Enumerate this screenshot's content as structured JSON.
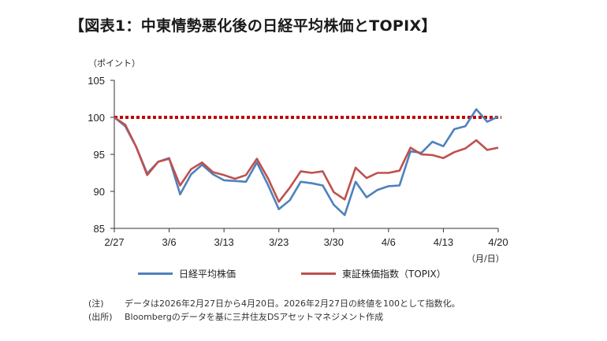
{
  "title": "【図表1：中東情勢悪化後の日経平均株価とTOPIX】",
  "notes": [
    {
      "label": "(注)",
      "text": "データは2026年2月27日から4月20日。2026年2月27日の終値を100として指数化。"
    },
    {
      "label": "(出所)",
      "text": "Bloombergのデータを基に三井住友DSアセットマネジメント作成"
    }
  ],
  "chart_data": {
    "type": "line",
    "ylabel": "（ポイント）",
    "xlabel": "（月/日）",
    "ylim": [
      85,
      105
    ],
    "yticks": [
      85,
      90,
      95,
      100,
      105
    ],
    "xticks": [
      {
        "label": "2/27",
        "index": 0
      },
      {
        "label": "3/6",
        "index": 5
      },
      {
        "label": "3/13",
        "index": 10
      },
      {
        "label": "3/23",
        "index": 15
      },
      {
        "label": "3/30",
        "index": 20
      },
      {
        "label": "4/6",
        "index": 25
      },
      {
        "label": "4/13",
        "index": 30
      },
      {
        "label": "4/20",
        "index": 35
      }
    ],
    "reference_line": {
      "value": 100,
      "color": "#c00000",
      "style": "dotted"
    },
    "series": [
      {
        "name": "日経平均株価",
        "color": "#4f81bd",
        "values": [
          100.0,
          98.8,
          96.0,
          92.4,
          94.0,
          94.5,
          89.6,
          92.3,
          93.6,
          92.3,
          91.5,
          91.4,
          91.3,
          93.9,
          90.9,
          87.6,
          88.8,
          91.3,
          91.1,
          90.8,
          88.2,
          86.8,
          91.3,
          89.2,
          90.2,
          90.7,
          90.8,
          95.4,
          95.2,
          96.7,
          96.1,
          98.4,
          98.8,
          101.1,
          99.4,
          100.1
        ]
      },
      {
        "name": "東証株価指数（TOPIX）",
        "color": "#c0504d",
        "values": [
          100.0,
          99.0,
          96.0,
          92.2,
          94.0,
          94.4,
          90.8,
          93.0,
          93.9,
          92.6,
          92.2,
          91.7,
          92.2,
          94.4,
          91.8,
          88.6,
          90.5,
          92.7,
          92.5,
          92.7,
          89.9,
          88.9,
          93.2,
          91.8,
          92.5,
          92.5,
          92.8,
          95.9,
          95.0,
          94.9,
          94.5,
          95.3,
          95.8,
          96.9,
          95.6,
          95.9
        ]
      }
    ]
  }
}
